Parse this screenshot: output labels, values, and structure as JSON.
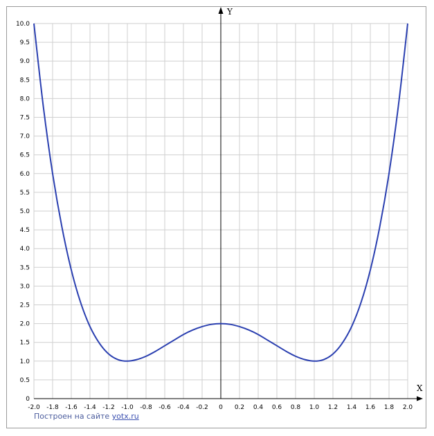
{
  "chart_data": {
    "type": "line",
    "title": "",
    "xlabel": "X",
    "ylabel": "Y",
    "xlim": [
      -2.0,
      2.0
    ],
    "ylim": [
      0,
      10.0
    ],
    "x_ticks": [
      "-2.0",
      "-1.8",
      "-1.6",
      "-1.4",
      "-1.2",
      "-1.0",
      "-0.8",
      "-0.6",
      "-0.4",
      "-0.2",
      "0",
      "0.2",
      "0.4",
      "0.6",
      "0.8",
      "1.0",
      "1.2",
      "1.4",
      "1.6",
      "1.8",
      "2.0"
    ],
    "y_ticks": [
      "0",
      "0.5",
      "1.0",
      "1.5",
      "2.0",
      "2.5",
      "3.0",
      "3.5",
      "4.0",
      "4.5",
      "5.0",
      "5.5",
      "6.0",
      "6.5",
      "7.0",
      "7.5",
      "8.0",
      "8.5",
      "9.0",
      "9.5",
      "10.0"
    ],
    "grid": true,
    "series": [
      {
        "color": "#2a3fb0",
        "x": [
          -2.0,
          -1.9,
          -1.8,
          -1.7,
          -1.6,
          -1.5,
          -1.4,
          -1.3,
          -1.2,
          -1.1,
          -1.0,
          -0.9,
          -0.8,
          -0.7,
          -0.6,
          -0.5,
          -0.4,
          -0.3,
          -0.2,
          -0.1,
          0.0,
          0.1,
          0.2,
          0.3,
          0.4,
          0.5,
          0.6,
          0.7,
          0.8,
          0.9,
          1.0,
          1.1,
          1.2,
          1.3,
          1.4,
          1.5,
          1.6,
          1.7,
          1.8,
          1.9,
          2.0
        ],
        "y": [
          10.0,
          7.8,
          6.0,
          4.57,
          3.43,
          2.56,
          1.92,
          1.48,
          1.19,
          1.04,
          1.0,
          1.04,
          1.13,
          1.26,
          1.41,
          1.56,
          1.71,
          1.83,
          1.92,
          1.98,
          2.0,
          1.98,
          1.92,
          1.83,
          1.71,
          1.56,
          1.41,
          1.26,
          1.13,
          1.04,
          1.0,
          1.04,
          1.19,
          1.48,
          1.92,
          2.56,
          3.43,
          4.57,
          6.0,
          7.8,
          10.0
        ]
      }
    ]
  },
  "credit": {
    "text": "Построен на сайте ",
    "link": "yotx.ru"
  }
}
